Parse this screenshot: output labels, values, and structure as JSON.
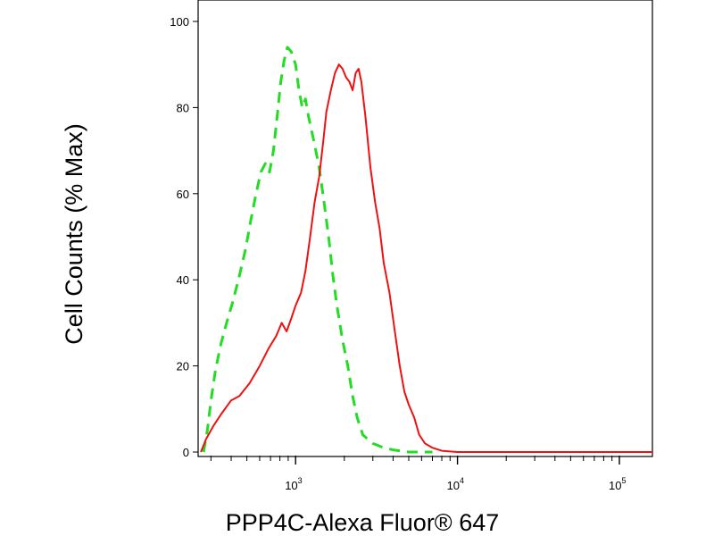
{
  "chart_data": {
    "type": "line",
    "title": "",
    "xlabel": "PPP4C-Alexa Fluor® 647",
    "ylabel": "Cell Counts (% Max)",
    "xscale": "log",
    "xlim": [
      250,
      160000
    ],
    "ylim": [
      0,
      102
    ],
    "x_ticks": [
      {
        "value": 1000,
        "base": "10",
        "exp": "3"
      },
      {
        "value": 10000,
        "base": "10",
        "exp": "4"
      },
      {
        "value": 100000,
        "base": "10",
        "exp": "5"
      }
    ],
    "y_ticks": [
      0,
      20,
      40,
      60,
      80,
      100
    ],
    "grid": false,
    "legend": "none",
    "series": [
      {
        "style": "dashed",
        "color": "#22dd22",
        "points": [
          [
            270,
            0
          ],
          [
            285,
            5
          ],
          [
            300,
            12
          ],
          [
            320,
            19
          ],
          [
            345,
            25
          ],
          [
            375,
            30
          ],
          [
            410,
            35
          ],
          [
            450,
            41
          ],
          [
            490,
            47
          ],
          [
            530,
            54
          ],
          [
            570,
            60
          ],
          [
            610,
            65
          ],
          [
            650,
            67
          ],
          [
            690,
            65
          ],
          [
            730,
            70
          ],
          [
            770,
            78
          ],
          [
            810,
            86
          ],
          [
            850,
            91
          ],
          [
            890,
            94
          ],
          [
            940,
            93
          ],
          [
            1000,
            90
          ],
          [
            1050,
            84
          ],
          [
            1100,
            80
          ],
          [
            1150,
            82
          ],
          [
            1200,
            78
          ],
          [
            1300,
            72
          ],
          [
            1400,
            66
          ],
          [
            1500,
            58
          ],
          [
            1600,
            50
          ],
          [
            1700,
            41
          ],
          [
            1800,
            34
          ],
          [
            1950,
            26
          ],
          [
            2100,
            20
          ],
          [
            2250,
            13
          ],
          [
            2400,
            8
          ],
          [
            2600,
            4
          ],
          [
            3000,
            2
          ],
          [
            3500,
            1
          ],
          [
            4000,
            0.5
          ],
          [
            5000,
            0
          ],
          [
            7000,
            0
          ]
        ]
      },
      {
        "style": "solid",
        "color": "#ee1111",
        "points": [
          [
            260,
            0
          ],
          [
            280,
            3
          ],
          [
            310,
            6
          ],
          [
            350,
            9
          ],
          [
            400,
            12
          ],
          [
            450,
            13
          ],
          [
            520,
            16
          ],
          [
            600,
            20
          ],
          [
            680,
            24
          ],
          [
            760,
            27
          ],
          [
            820,
            30
          ],
          [
            880,
            28
          ],
          [
            940,
            31
          ],
          [
            1000,
            34
          ],
          [
            1080,
            37
          ],
          [
            1150,
            42
          ],
          [
            1230,
            50
          ],
          [
            1310,
            58
          ],
          [
            1400,
            64
          ],
          [
            1480,
            72
          ],
          [
            1550,
            79
          ],
          [
            1650,
            84
          ],
          [
            1750,
            88
          ],
          [
            1850,
            90
          ],
          [
            1950,
            89
          ],
          [
            2050,
            87
          ],
          [
            2150,
            86
          ],
          [
            2250,
            84
          ],
          [
            2350,
            88
          ],
          [
            2450,
            89
          ],
          [
            2550,
            86
          ],
          [
            2700,
            78
          ],
          [
            2900,
            66
          ],
          [
            3100,
            58
          ],
          [
            3300,
            52
          ],
          [
            3500,
            44
          ],
          [
            3800,
            37
          ],
          [
            4100,
            28
          ],
          [
            4400,
            20
          ],
          [
            4700,
            14
          ],
          [
            5000,
            11
          ],
          [
            5400,
            8
          ],
          [
            5800,
            4
          ],
          [
            6300,
            2
          ],
          [
            7000,
            1
          ],
          [
            8000,
            0.3
          ],
          [
            10000,
            0
          ],
          [
            40000,
            0
          ],
          [
            160000,
            0
          ]
        ]
      }
    ]
  }
}
